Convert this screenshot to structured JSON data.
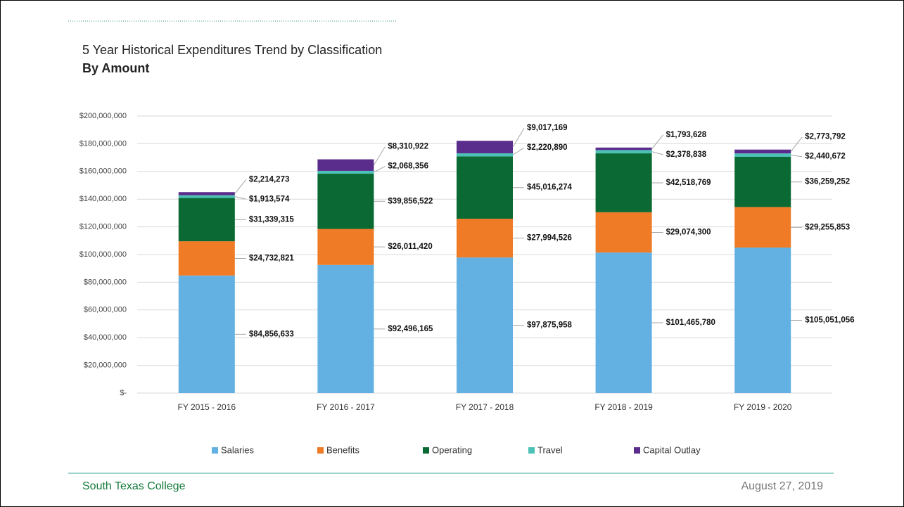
{
  "chart_data": {
    "type": "stacked-bar",
    "title": "5 Year Historical Expenditures Trend by Classification",
    "subtitle": "By Amount",
    "categories": [
      "FY 2015 - 2016",
      "FY 2016 - 2017",
      "FY 2017 - 2018",
      "FY 2018 - 2019",
      "FY 2019 - 2020"
    ],
    "series": [
      {
        "name": "Salaries",
        "color": "#62b1e2",
        "values": [
          84856633,
          92496165,
          97875958,
          101465780,
          105051056
        ],
        "value_labels": [
          "$84,856,633",
          "$92,496,165",
          "$97,875,958",
          "$101,465,780",
          "$105,051,056"
        ]
      },
      {
        "name": "Benefits",
        "color": "#ef7b27",
        "values": [
          24732821,
          26011420,
          27994526,
          29074300,
          29255853
        ],
        "value_labels": [
          "$24,732,821",
          "$26,011,420",
          "$27,994,526",
          "$29,074,300",
          "$29,255,853"
        ]
      },
      {
        "name": "Operating",
        "color": "#0b6a33",
        "values": [
          31339315,
          39856522,
          45016274,
          42518769,
          36259252
        ],
        "value_labels": [
          "$31,339,315",
          "$39,856,522",
          "$45,016,274",
          "$42,518,769",
          "$36,259,252"
        ]
      },
      {
        "name": "Travel",
        "color": "#4cc2b6",
        "values": [
          1913574,
          2068356,
          2220890,
          2378838,
          2440672
        ],
        "value_labels": [
          "$1,913,574",
          "$2,068,356",
          "$2,220,890",
          "$2,378,838",
          "$2,440,672"
        ]
      },
      {
        "name": "Capital Outlay",
        "color": "#5a2c8c",
        "values": [
          2214273,
          8310922,
          9017169,
          1793628,
          2773792
        ],
        "value_labels": [
          "$2,214,273",
          "$8,310,922",
          "$9,017,169",
          "$1,793,628",
          "$2,773,792"
        ]
      }
    ],
    "ylim": [
      0,
      200000000
    ],
    "yticks": [
      {
        "value": 0,
        "label": "$-"
      },
      {
        "value": 20000000,
        "label": "$20,000,000"
      },
      {
        "value": 40000000,
        "label": "$40,000,000"
      },
      {
        "value": 60000000,
        "label": "$60,000,000"
      },
      {
        "value": 80000000,
        "label": "$80,000,000"
      },
      {
        "value": 100000000,
        "label": "$100,000,000"
      },
      {
        "value": 120000000,
        "label": "$120,000,000"
      },
      {
        "value": 140000000,
        "label": "$140,000,000"
      },
      {
        "value": 160000000,
        "label": "$160,000,000"
      },
      {
        "value": 180000000,
        "label": "$180,000,000"
      },
      {
        "value": 200000000,
        "label": "$200,000,000"
      }
    ],
    "grid": true,
    "legend": "bottom"
  },
  "footer": {
    "left": "South Texas College",
    "right": "August 27, 2019"
  }
}
